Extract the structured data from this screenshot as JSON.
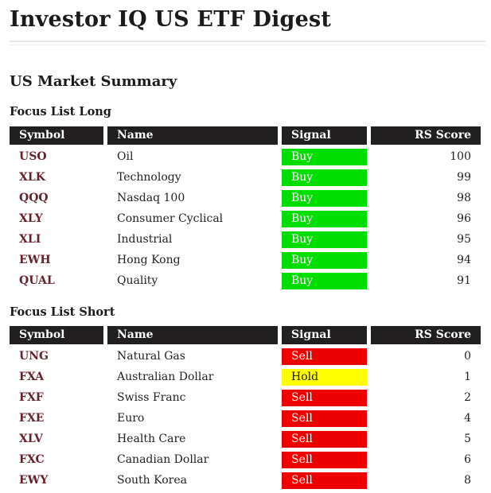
{
  "page": {
    "title": "Investor IQ US ETF Digest",
    "section_heading": "US Market Summary"
  },
  "colors": {
    "header_bg": "#211f1f",
    "header_text": "#ffffff",
    "symbol_text": "#67212d",
    "buy_bg": "#00de00",
    "buy_text": "#ffffff",
    "sell_bg": "#ee0000",
    "sell_text": "#ffffff",
    "hold_bg": "#ffff00",
    "hold_text": "#1c1c1c"
  },
  "tables": [
    {
      "heading": "Focus List Long",
      "columns": [
        "Symbol",
        "Name",
        "Signal",
        "RS Score"
      ],
      "rows": [
        {
          "symbol": "USO",
          "name": "Oil",
          "signal": "Buy",
          "rs_score": 100
        },
        {
          "symbol": "XLK",
          "name": "Technology",
          "signal": "Buy",
          "rs_score": 99
        },
        {
          "symbol": "QQQ",
          "name": "Nasdaq 100",
          "signal": "Buy",
          "rs_score": 98
        },
        {
          "symbol": "XLY",
          "name": "Consumer Cyclical",
          "signal": "Buy",
          "rs_score": 96
        },
        {
          "symbol": "XLI",
          "name": "Industrial",
          "signal": "Buy",
          "rs_score": 95
        },
        {
          "symbol": "EWH",
          "name": "Hong Kong",
          "signal": "Buy",
          "rs_score": 94
        },
        {
          "symbol": "QUAL",
          "name": "Quality",
          "signal": "Buy",
          "rs_score": 91
        }
      ]
    },
    {
      "heading": "Focus List Short",
      "columns": [
        "Symbol",
        "Name",
        "Signal",
        "RS Score"
      ],
      "rows": [
        {
          "symbol": "UNG",
          "name": "Natural Gas",
          "signal": "Sell",
          "rs_score": 0
        },
        {
          "symbol": "FXA",
          "name": "Australian Dollar",
          "signal": "Hold",
          "rs_score": 1
        },
        {
          "symbol": "FXF",
          "name": "Swiss Franc",
          "signal": "Sell",
          "rs_score": 2
        },
        {
          "symbol": "FXE",
          "name": "Euro",
          "signal": "Sell",
          "rs_score": 4
        },
        {
          "symbol": "XLV",
          "name": "Health Care",
          "signal": "Sell",
          "rs_score": 5
        },
        {
          "symbol": "FXC",
          "name": "Canadian Dollar",
          "signal": "Sell",
          "rs_score": 6
        },
        {
          "symbol": "EWY",
          "name": "South Korea",
          "signal": "Sell",
          "rs_score": 8
        }
      ]
    }
  ]
}
